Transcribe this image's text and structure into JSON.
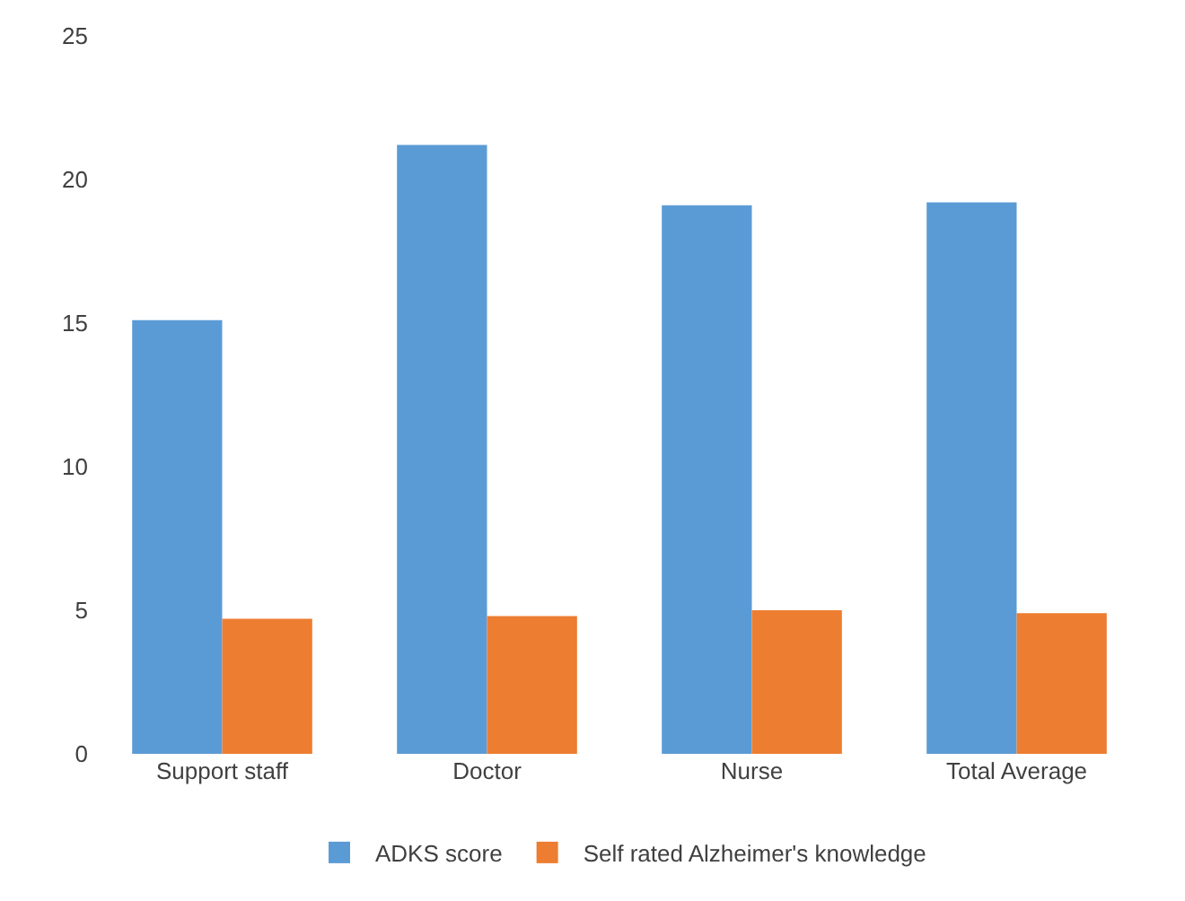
{
  "chart_data": {
    "type": "bar",
    "categories": [
      "Support staff",
      "Doctor",
      "Nurse",
      "Total Average"
    ],
    "series": [
      {
        "name": "ADKS score",
        "color": "#5b9bd5",
        "values": [
          15.1,
          21.2,
          19.1,
          19.2
        ]
      },
      {
        "name": "Self rated Alzheimer's knowledge",
        "color": "#ed7d31",
        "values": [
          4.7,
          4.8,
          5.0,
          4.9
        ]
      }
    ],
    "ylim": [
      0,
      25
    ],
    "yticks": [
      0,
      5,
      10,
      15,
      20,
      25
    ],
    "grid": false,
    "legend": "bottom"
  }
}
